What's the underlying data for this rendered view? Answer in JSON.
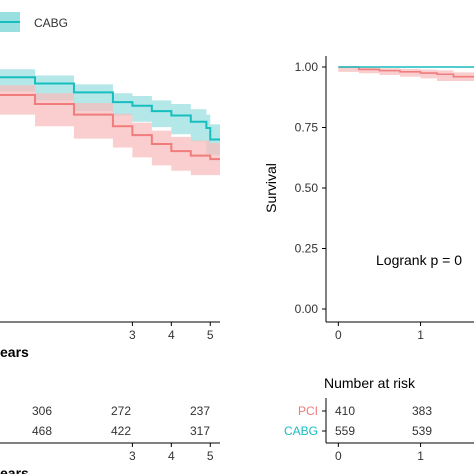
{
  "legend": {
    "entries": [
      {
        "label": "CABG",
        "color": "#17BEBF",
        "band": "#9ADFE0"
      }
    ]
  },
  "colors": {
    "pci": "#F07C7C",
    "pci_band": "#F8BDBD",
    "cabg": "#17BEBF",
    "cabg_band": "#9ADFE0"
  },
  "chart_data": [
    {
      "type": "line",
      "title": "",
      "xlabel": "ears",
      "ylabel": "",
      "xlim": [
        -0.4,
        5.25
      ],
      "ylim": [
        0.7,
        1.0
      ],
      "x_ticks": [
        "3",
        "4",
        "5"
      ],
      "grid": false,
      "legend": "top-left",
      "series": [
        {
          "name": "CABG",
          "color": "#17BEBF",
          "x": [
            -0.4,
            0.5,
            1.5,
            2.5,
            3.0,
            3.5,
            4.0,
            4.5,
            4.9,
            5.0,
            5.25
          ],
          "y": [
            0.975,
            0.968,
            0.958,
            0.947,
            0.943,
            0.937,
            0.932,
            0.925,
            0.918,
            0.905,
            0.905
          ],
          "lower": [
            0.966,
            0.959,
            0.949,
            0.937,
            0.932,
            0.925,
            0.919,
            0.911,
            0.903,
            0.888,
            0.888
          ],
          "upper": [
            0.984,
            0.977,
            0.967,
            0.957,
            0.954,
            0.949,
            0.945,
            0.939,
            0.933,
            0.922,
            0.922
          ]
        },
        {
          "name": "PCI",
          "color": "#F07C7C",
          "x": [
            -0.4,
            0.5,
            1.5,
            2.5,
            3.0,
            3.5,
            4.0,
            4.5,
            5.0,
            5.25
          ],
          "y": [
            0.955,
            0.945,
            0.933,
            0.92,
            0.91,
            0.9,
            0.892,
            0.887,
            0.883,
            0.883
          ],
          "lower": [
            0.944,
            0.933,
            0.92,
            0.906,
            0.896,
            0.885,
            0.876,
            0.87,
            0.865,
            0.865
          ],
          "upper": [
            0.966,
            0.957,
            0.946,
            0.934,
            0.924,
            0.915,
            0.908,
            0.904,
            0.901,
            0.901
          ]
        }
      ],
      "risk_table": {
        "x_ticks": [
          "3",
          "4",
          "5"
        ],
        "rows": [
          {
            "name": "PCI",
            "values": [
              "306",
              "272",
              "237"
            ]
          },
          {
            "name": "CABG",
            "values": [
              "468",
              "422",
              "317"
            ]
          }
        ],
        "xlabel": "ears"
      }
    },
    {
      "type": "line",
      "title": "",
      "xlabel": "",
      "ylabel": "Survival",
      "xlim": [
        -0.15,
        1.65
      ],
      "ylim": [
        0,
        1.0
      ],
      "y_ticks": [
        "0.00",
        "0.25",
        "0.50",
        "0.75",
        "1.00"
      ],
      "x_ticks": [
        "0",
        "1"
      ],
      "annotation": "Logrank p = 0",
      "grid": false,
      "series": [
        {
          "name": "CABG",
          "color": "#17BEBF",
          "x": [
            0,
            0.3,
            0.6,
            1.0,
            1.3,
            1.65
          ],
          "y": [
            1.0,
            1.0,
            1.0,
            1.0,
            1.0,
            1.0
          ]
        },
        {
          "name": "PCI",
          "color": "#F07C7C",
          "x": [
            0,
            0.25,
            0.5,
            0.75,
            1.0,
            1.2,
            1.4,
            1.65
          ],
          "y": [
            1.0,
            0.99,
            0.985,
            0.98,
            0.975,
            0.97,
            0.96,
            0.96
          ],
          "lower": [
            1.0,
            0.98,
            0.974,
            0.967,
            0.96,
            0.953,
            0.942,
            0.942
          ],
          "upper": [
            1.0,
            0.998,
            0.995,
            0.992,
            0.989,
            0.986,
            0.978,
            0.978
          ]
        }
      ],
      "risk_table": {
        "title": "Number at risk",
        "x_ticks": [
          "0",
          "1"
        ],
        "rows": [
          {
            "name": "PCI",
            "color": "#F07C7C",
            "values": [
              "410",
              "383"
            ]
          },
          {
            "name": "CABG",
            "color": "#17BEBF",
            "values": [
              "559",
              "539"
            ]
          }
        ]
      }
    }
  ]
}
